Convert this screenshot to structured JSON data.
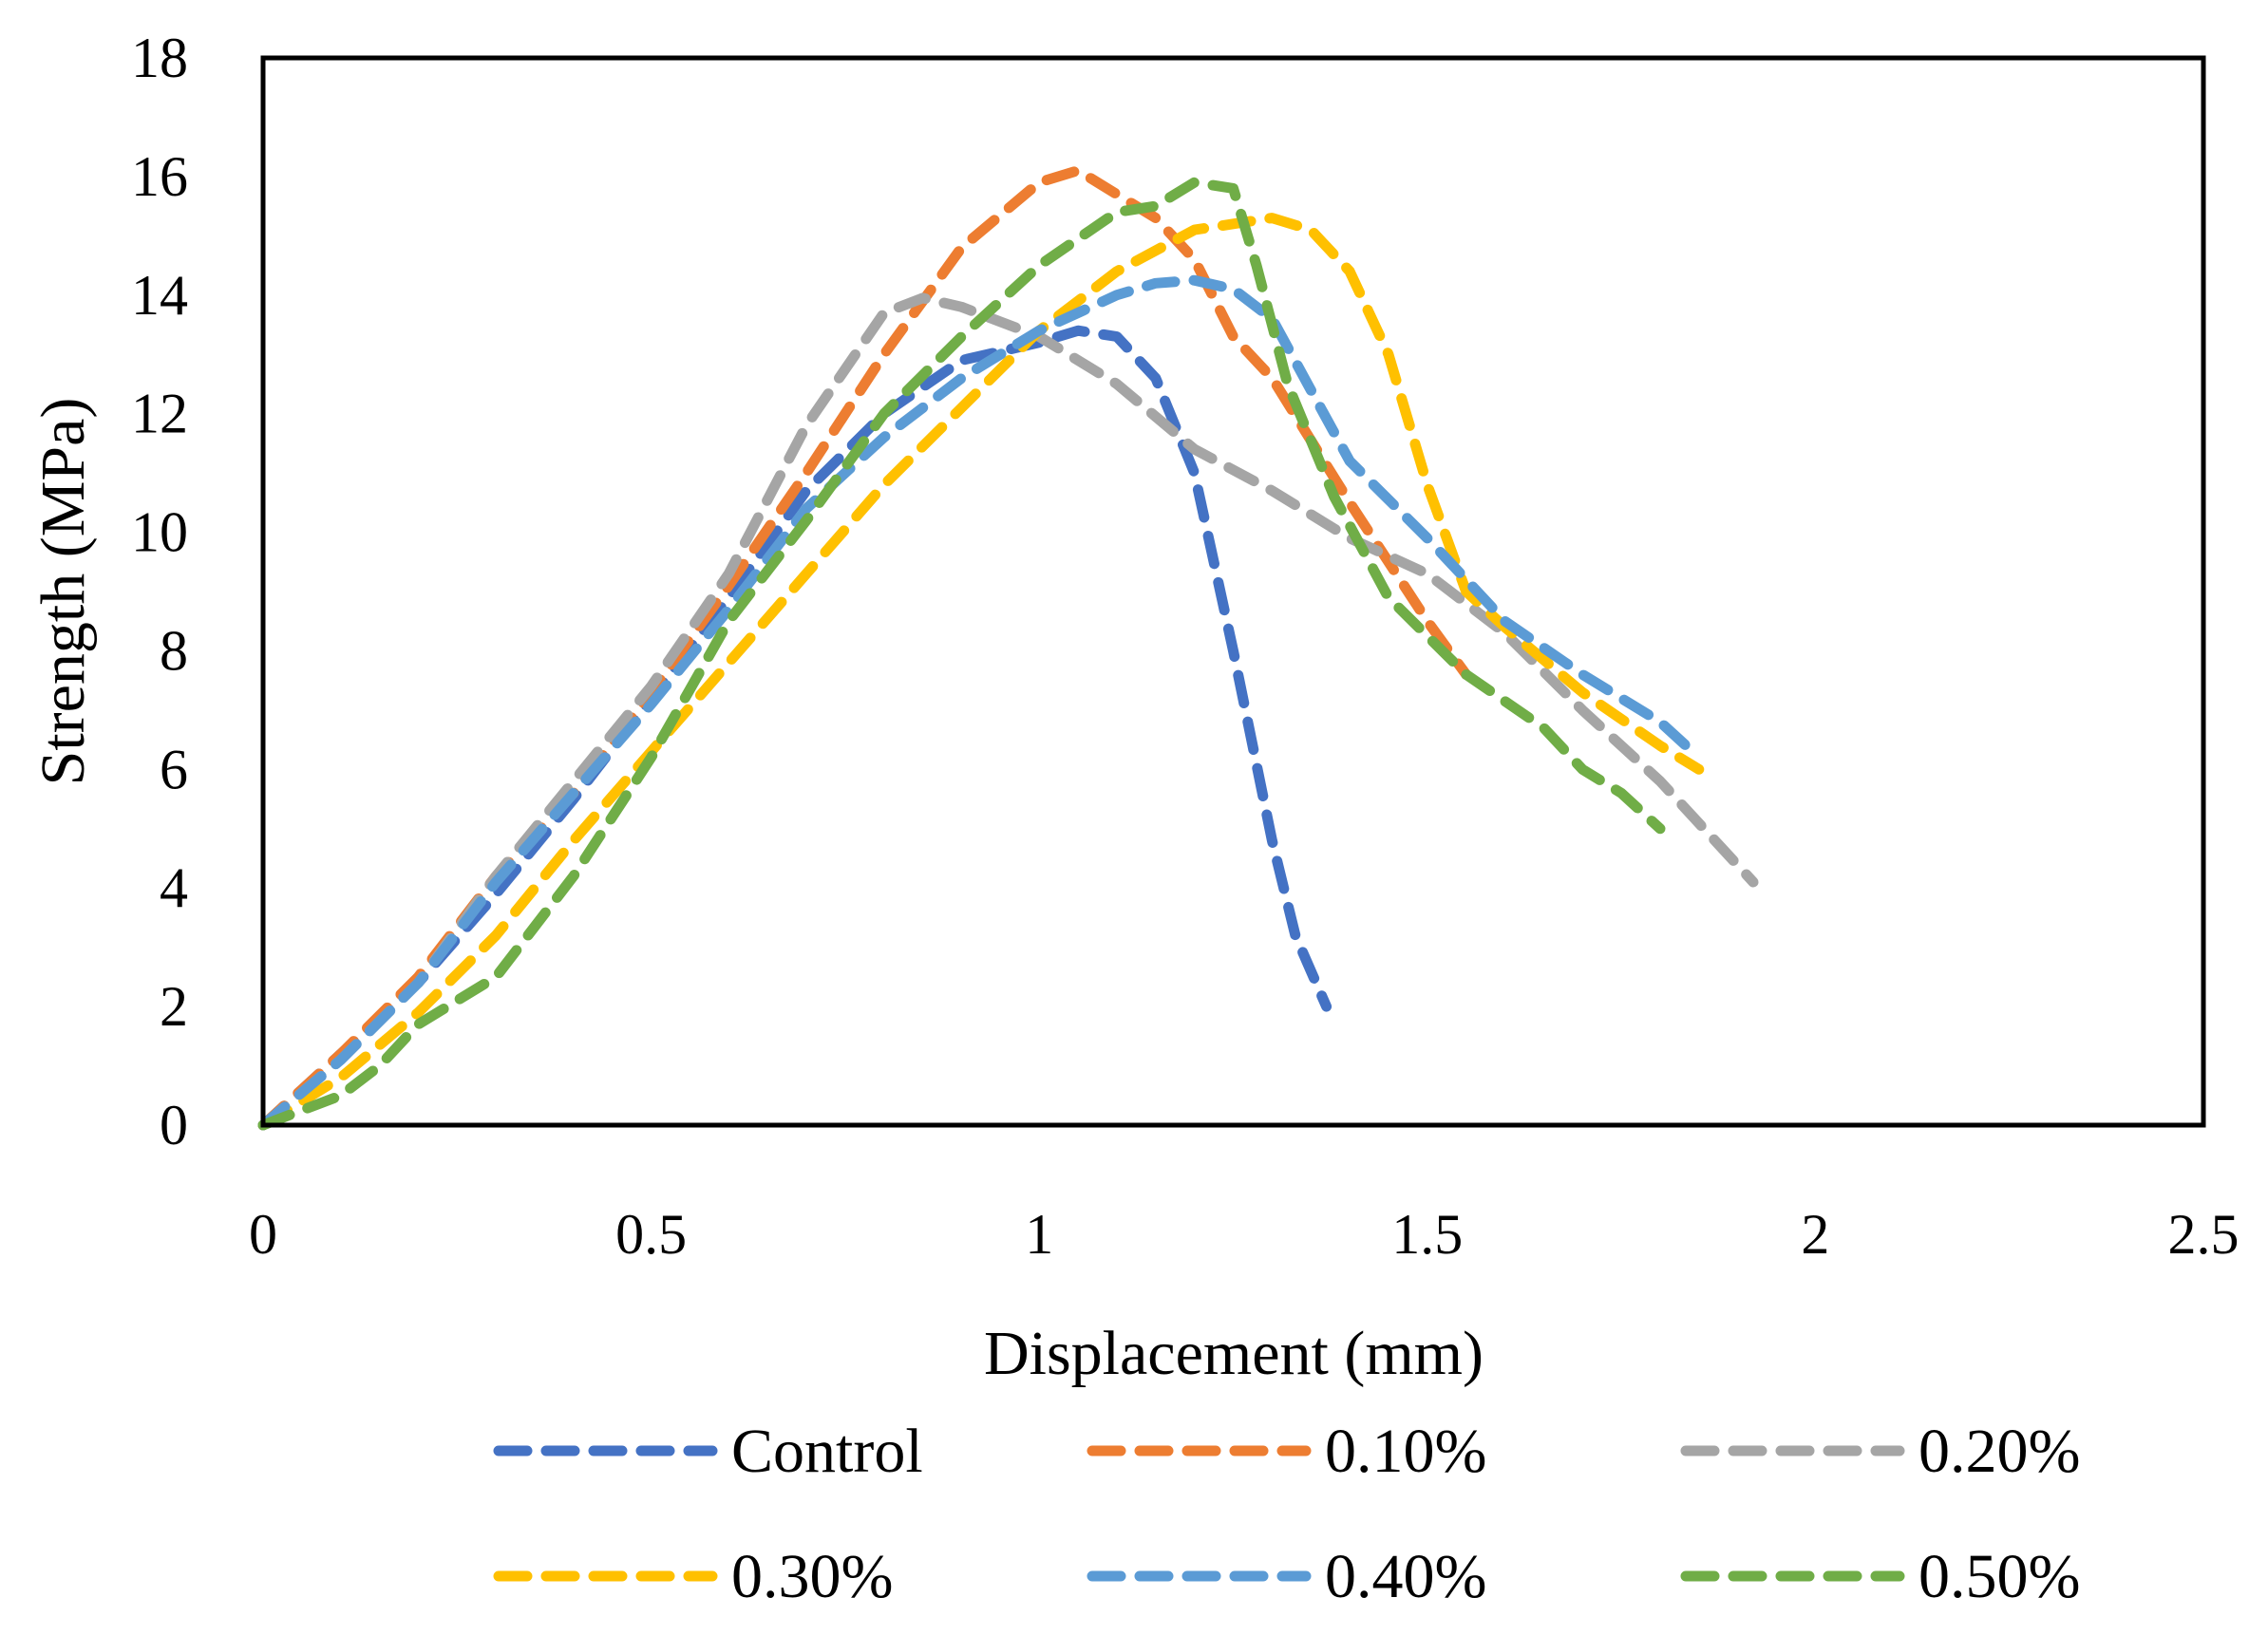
{
  "chart_data": {
    "type": "line",
    "title": "",
    "xlabel": "Displacement (mm)",
    "ylabel": "Strength (MPa)",
    "xlim": [
      0,
      2.5
    ],
    "ylim": [
      0,
      18
    ],
    "xticks": [
      "0",
      "0.5",
      "1",
      "1.5",
      "2",
      "2.5"
    ],
    "yticks": [
      "0",
      "2",
      "4",
      "6",
      "8",
      "10",
      "12",
      "14",
      "16",
      "18"
    ],
    "grid": false,
    "legend_position": "bottom",
    "series": [
      {
        "name": "Control",
        "color": "#4472C4",
        "points": [
          [
            0,
            0
          ],
          [
            0.05,
            0.6
          ],
          [
            0.1,
            1.2
          ],
          [
            0.2,
            2.4
          ],
          [
            0.3,
            3.9
          ],
          [
            0.4,
            5.5
          ],
          [
            0.5,
            7.2
          ],
          [
            0.6,
            8.9
          ],
          [
            0.7,
            10.7
          ],
          [
            0.8,
            12.0
          ],
          [
            0.9,
            12.9
          ],
          [
            1.0,
            13.2
          ],
          [
            1.05,
            13.4
          ],
          [
            1.1,
            13.3
          ],
          [
            1.15,
            12.6
          ],
          [
            1.2,
            11.0
          ],
          [
            1.25,
            8.0
          ],
          [
            1.3,
            4.8
          ],
          [
            1.33,
            3.2
          ],
          [
            1.37,
            2.0
          ]
        ]
      },
      {
        "name": "0.10%",
        "color": "#ED7D31",
        "points": [
          [
            0,
            0
          ],
          [
            0.1,
            1.2
          ],
          [
            0.2,
            2.5
          ],
          [
            0.3,
            4.2
          ],
          [
            0.4,
            5.6
          ],
          [
            0.5,
            7.3
          ],
          [
            0.6,
            9.1
          ],
          [
            0.7,
            11.0
          ],
          [
            0.8,
            13.0
          ],
          [
            0.9,
            14.8
          ],
          [
            1.0,
            15.9
          ],
          [
            1.05,
            16.1
          ],
          [
            1.1,
            15.7
          ],
          [
            1.15,
            15.3
          ],
          [
            1.2,
            14.6
          ],
          [
            1.25,
            13.3
          ],
          [
            1.3,
            12.6
          ],
          [
            1.4,
            10.5
          ],
          [
            1.5,
            8.5
          ],
          [
            1.55,
            7.6
          ]
        ]
      },
      {
        "name": "0.20%",
        "color": "#A5A5A5",
        "points": [
          [
            0,
            0
          ],
          [
            0.1,
            1.1
          ],
          [
            0.2,
            2.4
          ],
          [
            0.3,
            4.2
          ],
          [
            0.4,
            5.8
          ],
          [
            0.5,
            7.4
          ],
          [
            0.6,
            9.3
          ],
          [
            0.7,
            11.8
          ],
          [
            0.8,
            13.7
          ],
          [
            0.85,
            13.95
          ],
          [
            0.9,
            13.8
          ],
          [
            1.0,
            13.3
          ],
          [
            1.1,
            12.5
          ],
          [
            1.2,
            11.4
          ],
          [
            1.3,
            10.7
          ],
          [
            1.4,
            9.9
          ],
          [
            1.5,
            9.3
          ],
          [
            1.6,
            8.3
          ],
          [
            1.7,
            7.0
          ],
          [
            1.8,
            5.8
          ],
          [
            1.92,
            4.1
          ]
        ]
      },
      {
        "name": "0.30%",
        "color": "#FFC000",
        "points": [
          [
            0,
            0
          ],
          [
            0.1,
            0.8
          ],
          [
            0.2,
            1.9
          ],
          [
            0.3,
            3.2
          ],
          [
            0.4,
            4.8
          ],
          [
            0.5,
            6.3
          ],
          [
            0.6,
            7.8
          ],
          [
            0.7,
            9.3
          ],
          [
            0.8,
            10.8
          ],
          [
            0.9,
            12.1
          ],
          [
            1.0,
            13.4
          ],
          [
            1.1,
            14.4
          ],
          [
            1.2,
            15.1
          ],
          [
            1.25,
            15.2
          ],
          [
            1.3,
            15.3
          ],
          [
            1.35,
            15.1
          ],
          [
            1.4,
            14.4
          ],
          [
            1.45,
            13.0
          ],
          [
            1.5,
            10.8
          ],
          [
            1.55,
            9.0
          ],
          [
            1.6,
            8.4
          ],
          [
            1.7,
            7.3
          ],
          [
            1.8,
            6.4
          ],
          [
            1.85,
            6.0
          ]
        ]
      },
      {
        "name": "0.40%",
        "color": "#5B9BD5",
        "points": [
          [
            0,
            0
          ],
          [
            0.1,
            1.1
          ],
          [
            0.2,
            2.4
          ],
          [
            0.3,
            4.1
          ],
          [
            0.4,
            5.6
          ],
          [
            0.5,
            7.1
          ],
          [
            0.6,
            8.7
          ],
          [
            0.7,
            10.4
          ],
          [
            0.8,
            11.6
          ],
          [
            0.9,
            12.6
          ],
          [
            1.0,
            13.4
          ],
          [
            1.1,
            14.0
          ],
          [
            1.15,
            14.2
          ],
          [
            1.2,
            14.25
          ],
          [
            1.25,
            14.1
          ],
          [
            1.3,
            13.6
          ],
          [
            1.35,
            12.4
          ],
          [
            1.4,
            11.2
          ],
          [
            1.5,
            9.9
          ],
          [
            1.6,
            8.5
          ],
          [
            1.7,
            7.6
          ],
          [
            1.8,
            6.8
          ],
          [
            1.85,
            6.2
          ]
        ]
      },
      {
        "name": "0.50%",
        "color": "#70AD47",
        "points": [
          [
            0,
            0
          ],
          [
            0.1,
            0.5
          ],
          [
            0.15,
            1.0
          ],
          [
            0.2,
            1.7
          ],
          [
            0.3,
            2.5
          ],
          [
            0.4,
            4.2
          ],
          [
            0.5,
            6.2
          ],
          [
            0.6,
            8.5
          ],
          [
            0.7,
            10.2
          ],
          [
            0.8,
            12.0
          ],
          [
            0.9,
            13.3
          ],
          [
            1.0,
            14.5
          ],
          [
            1.1,
            15.4
          ],
          [
            1.15,
            15.5
          ],
          [
            1.2,
            15.9
          ],
          [
            1.25,
            15.8
          ],
          [
            1.28,
            14.5
          ],
          [
            1.32,
            12.5
          ],
          [
            1.38,
            10.6
          ],
          [
            1.45,
            8.9
          ],
          [
            1.55,
            7.6
          ],
          [
            1.65,
            6.7
          ],
          [
            1.7,
            6.0
          ],
          [
            1.75,
            5.6
          ],
          [
            1.8,
            5.0
          ]
        ]
      }
    ]
  }
}
